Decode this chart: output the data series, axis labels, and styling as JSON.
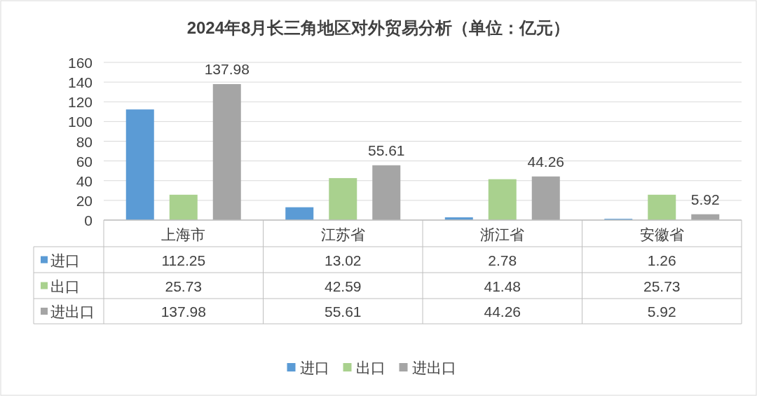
{
  "chart_data": {
    "type": "bar",
    "title": "2024年8月长三角地区对外贸易分析（单位：亿元）",
    "categories": [
      "上海市",
      "江苏省",
      "浙江省",
      "安徽省"
    ],
    "series": [
      {
        "name": "进口",
        "color": "#5b9bd5",
        "values": [
          112.25,
          13.02,
          2.78,
          1.26
        ]
      },
      {
        "name": "出口",
        "color": "#a9d18e",
        "values": [
          25.73,
          42.59,
          41.48,
          25.73
        ]
      },
      {
        "name": "进出口",
        "color": "#a5a5a5",
        "values": [
          137.98,
          55.61,
          44.26,
          5.92
        ]
      }
    ],
    "annotations": [
      "137.98",
      "55.61",
      "44.26",
      "5.92"
    ],
    "ylim": [
      0,
      160
    ],
    "yticks": [
      0,
      20,
      40,
      60,
      80,
      100,
      120,
      140,
      160
    ],
    "grid": "y",
    "legend": "bottom",
    "data_labels": true
  }
}
